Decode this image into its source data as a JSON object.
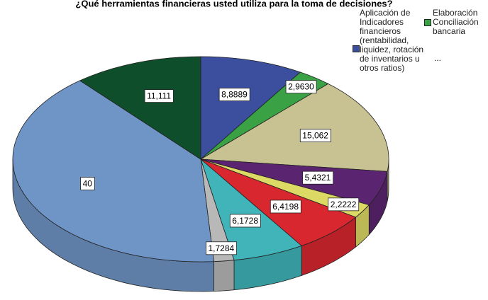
{
  "chart_data": {
    "type": "pie",
    "title": "¿Qué herramientas financieras usted utiliza para la toma de decisiones?",
    "categories": [
      "Aplicación de Indicadores financieros (rentabilidad, liquidez, rotación de inventarios u otros ratios)",
      "Elaboración Conciliación bancaria",
      null,
      null,
      null,
      null,
      null,
      null,
      null,
      null
    ],
    "values": [
      8.8889,
      2.963,
      15.062,
      5.4321,
      2.2222,
      6.4198,
      6.1728,
      1.7284,
      40,
      11.111
    ],
    "value_labels": [
      "8,8889",
      "2,9630",
      "15,062",
      "5,4321",
      "2,2222",
      "6,4198",
      "6,1728",
      "1,7284",
      "40",
      "11,111"
    ],
    "colors": [
      "#3b4f9e",
      "#3aa244",
      "#c8c192",
      "#5b2470",
      "#dcd964",
      "#d9272f",
      "#40b4b9",
      "#b8b8b8",
      "#6f94c6",
      "#0f4e2b"
    ],
    "legend_more": "..."
  }
}
